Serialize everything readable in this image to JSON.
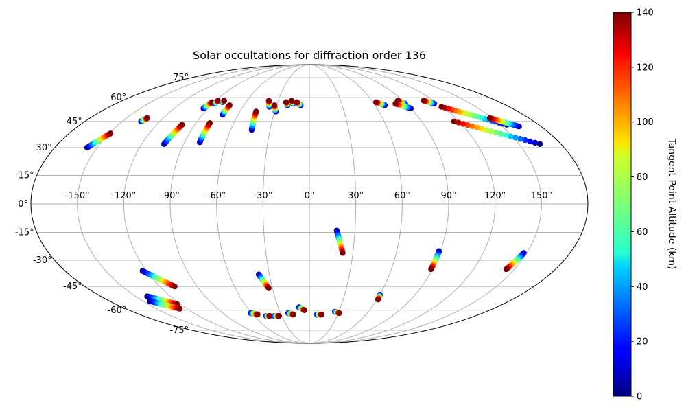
{
  "chart_data": {
    "type": "scatter",
    "projection": "mollweide",
    "title": "Solar occultations for diffraction order 136",
    "grid": true,
    "lon_ticks": [
      -150,
      -120,
      -90,
      -60,
      -30,
      0,
      30,
      60,
      90,
      120,
      150
    ],
    "lat_ticks": [
      -75,
      -60,
      -45,
      -30,
      -15,
      0,
      15,
      30,
      45,
      60,
      75
    ],
    "lon_tick_labels": [
      "-150°",
      "-120°",
      "-90°",
      "-60°",
      "-30°",
      "0°",
      "30°",
      "60°",
      "90°",
      "120°",
      "150°"
    ],
    "lat_tick_labels": [
      "-75°",
      "-60°",
      "-45°",
      "-30°",
      "-15°",
      "0°",
      "15°",
      "30°",
      "45°",
      "60°",
      "75°"
    ],
    "colorbar": {
      "label": "Tangent Point Altitude (km)",
      "colormap": "jet",
      "range": [
        0,
        140
      ],
      "ticks": [
        0,
        20,
        40,
        60,
        80,
        100,
        120,
        140
      ],
      "tick_labels": [
        "0",
        "20",
        "40",
        "60",
        "80",
        "100",
        "120",
        "140"
      ]
    },
    "tracks": [
      {
        "lon_start": -157,
        "lat_start": 30,
        "lon_end": -149,
        "lat_end": 38
      },
      {
        "lon_start": -135,
        "lat_start": 45,
        "lon_end": -133,
        "lat_end": 47
      },
      {
        "lon_start": -104,
        "lat_start": 32,
        "lon_end": -100,
        "lat_end": 43
      },
      {
        "lon_start": -94,
        "lat_start": 53,
        "lon_end": -92,
        "lat_end": 57
      },
      {
        "lon_start": -88,
        "lat_start": 56,
        "lon_end": -88,
        "lat_end": 58
      },
      {
        "lon_start": -82,
        "lat_start": 57,
        "lon_end": -82,
        "lat_end": 58
      },
      {
        "lon_start": -79,
        "lat_start": 33,
        "lon_end": -79,
        "lat_end": 44
      },
      {
        "lon_start": -73,
        "lat_start": 49,
        "lon_end": -73,
        "lat_end": 55
      },
      {
        "lon_start": -44,
        "lat_start": 40,
        "lon_end": -46,
        "lat_end": 51
      },
      {
        "lon_start": -36,
        "lat_start": 54,
        "lon_end": -39,
        "lat_end": 58
      },
      {
        "lon_start": -29,
        "lat_start": 51,
        "lon_end": -32,
        "lat_end": 55
      },
      {
        "lon_start": -20,
        "lat_start": 55,
        "lon_end": -22,
        "lat_end": 57
      },
      {
        "lon_start": -15,
        "lat_start": 56,
        "lon_end": -17,
        "lat_end": 58
      },
      {
        "lon_start": -8,
        "lat_start": 55,
        "lon_end": -12,
        "lat_end": 57
      },
      {
        "lon_start": 69,
        "lat_start": 55,
        "lon_end": 63,
        "lat_end": 57
      },
      {
        "lon_start": 89,
        "lat_start": 56,
        "lon_end": 85,
        "lat_end": 58
      },
      {
        "lon_start": 90,
        "lat_start": 53,
        "lon_end": 80,
        "lat_end": 56
      },
      {
        "lon_start": 116,
        "lat_start": 56,
        "lon_end": 110,
        "lat_end": 58
      },
      {
        "lon_start": 155,
        "lat_start": 43,
        "lon_end": 119,
        "lat_end": 54
      },
      {
        "lon_start": 165,
        "lat_start": 32,
        "lon_end": 116,
        "lat_end": 45
      },
      {
        "lon_start": 163,
        "lat_start": 42,
        "lon_end": 148,
        "lat_end": 47
      },
      {
        "lon_start": 18,
        "lat_start": -14,
        "lon_end": 23,
        "lat_end": -26
      },
      {
        "lon_start": 89,
        "lat_start": -25,
        "lon_end": 89,
        "lat_end": -35
      },
      {
        "lon_start": 148,
        "lat_start": -26,
        "lon_end": 144,
        "lat_end": -35
      },
      {
        "lon_start": -123,
        "lat_start": -36,
        "lon_end": -108,
        "lat_end": -45
      },
      {
        "lon_start": -38,
        "lat_start": -38,
        "lon_end": -33,
        "lat_end": -46
      },
      {
        "lon_start": -140,
        "lat_start": -51,
        "lon_end": -123,
        "lat_end": -56
      },
      {
        "lon_start": -144,
        "lat_start": -54,
        "lon_end": -127,
        "lat_end": -59
      },
      {
        "lon_start": 60,
        "lat_start": -50,
        "lon_end": 61,
        "lat_end": -53
      },
      {
        "lon_start": -61,
        "lat_start": -62,
        "lon_end": -55,
        "lat_end": -63
      },
      {
        "lon_start": -47,
        "lat_start": -64,
        "lon_end": -43,
        "lat_end": -64
      },
      {
        "lon_start": -38,
        "lat_start": -64,
        "lon_end": -33,
        "lat_end": -64
      },
      {
        "lon_start": -22,
        "lat_start": -62,
        "lon_end": -17,
        "lat_end": -63
      },
      {
        "lon_start": -10,
        "lat_start": -58,
        "lon_end": -5,
        "lat_end": -60
      },
      {
        "lon_start": 8,
        "lat_start": -63,
        "lon_end": 13,
        "lat_end": -63
      },
      {
        "lon_start": 26,
        "lat_start": -61,
        "lon_end": 31,
        "lat_end": -62
      }
    ]
  }
}
